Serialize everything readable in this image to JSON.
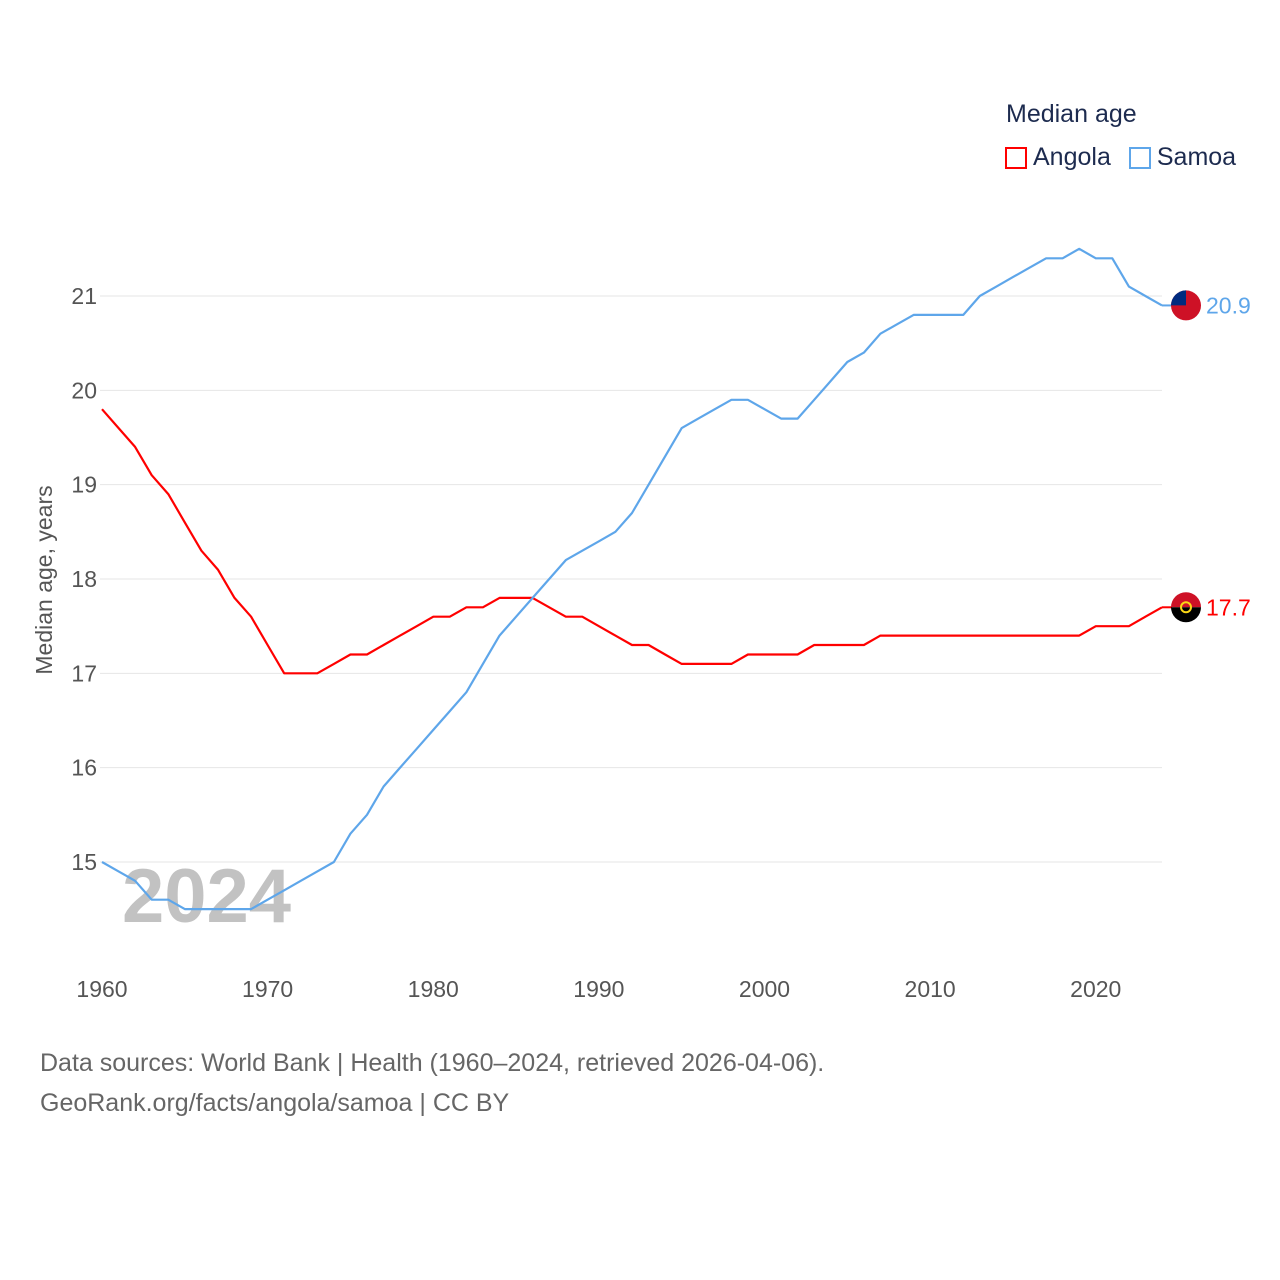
{
  "chart_data": {
    "type": "line",
    "title": "Median age",
    "ylabel": "Median age, years",
    "xlabel": "",
    "xlim": [
      1960,
      2024
    ],
    "ylim": [
      14,
      21.7
    ],
    "yticks": [
      15,
      16,
      17,
      18,
      19,
      20,
      21
    ],
    "xticks": [
      1960,
      1970,
      1980,
      1990,
      2000,
      2010,
      2020
    ],
    "grid": true,
    "legend_position": "top-right",
    "watermark_year": "2024",
    "x_start": 1960,
    "series": [
      {
        "name": "Angola",
        "color": "#ff0000",
        "end_label": "17.7",
        "values": [
          19.8,
          19.6,
          19.4,
          19.1,
          18.9,
          18.6,
          18.3,
          18.1,
          17.8,
          17.6,
          17.3,
          17.0,
          17.0,
          17.0,
          17.1,
          17.2,
          17.2,
          17.3,
          17.4,
          17.5,
          17.6,
          17.6,
          17.7,
          17.7,
          17.8,
          17.8,
          17.8,
          17.7,
          17.6,
          17.6,
          17.5,
          17.4,
          17.3,
          17.3,
          17.2,
          17.1,
          17.1,
          17.1,
          17.1,
          17.2,
          17.2,
          17.2,
          17.2,
          17.3,
          17.3,
          17.3,
          17.3,
          17.4,
          17.4,
          17.4,
          17.4,
          17.4,
          17.4,
          17.4,
          17.4,
          17.4,
          17.4,
          17.4,
          17.4,
          17.4,
          17.5,
          17.5,
          17.5,
          17.6,
          17.7
        ]
      },
      {
        "name": "Samoa",
        "color": "#5ea6ea",
        "end_label": "20.9",
        "values": [
          15.0,
          14.9,
          14.8,
          14.6,
          14.6,
          14.5,
          14.5,
          14.5,
          14.5,
          14.5,
          14.6,
          14.7,
          14.8,
          14.9,
          15.0,
          15.3,
          15.5,
          15.8,
          16.0,
          16.2,
          16.4,
          16.6,
          16.8,
          17.1,
          17.4,
          17.6,
          17.8,
          18.0,
          18.2,
          18.3,
          18.4,
          18.5,
          18.7,
          19.0,
          19.3,
          19.6,
          19.7,
          19.8,
          19.9,
          19.9,
          19.8,
          19.7,
          19.7,
          19.9,
          20.1,
          20.3,
          20.4,
          20.6,
          20.7,
          20.8,
          20.8,
          20.8,
          20.8,
          21.0,
          21.1,
          21.2,
          21.3,
          21.4,
          21.4,
          21.5,
          21.4,
          21.4,
          21.1,
          21.0,
          20.9
        ]
      }
    ]
  },
  "footer": {
    "line1": "Data sources: World Bank | Health (1960–2024, retrieved 2026-04-06).",
    "line2": "GeoRank.org/facts/angola/samoa | CC BY"
  }
}
